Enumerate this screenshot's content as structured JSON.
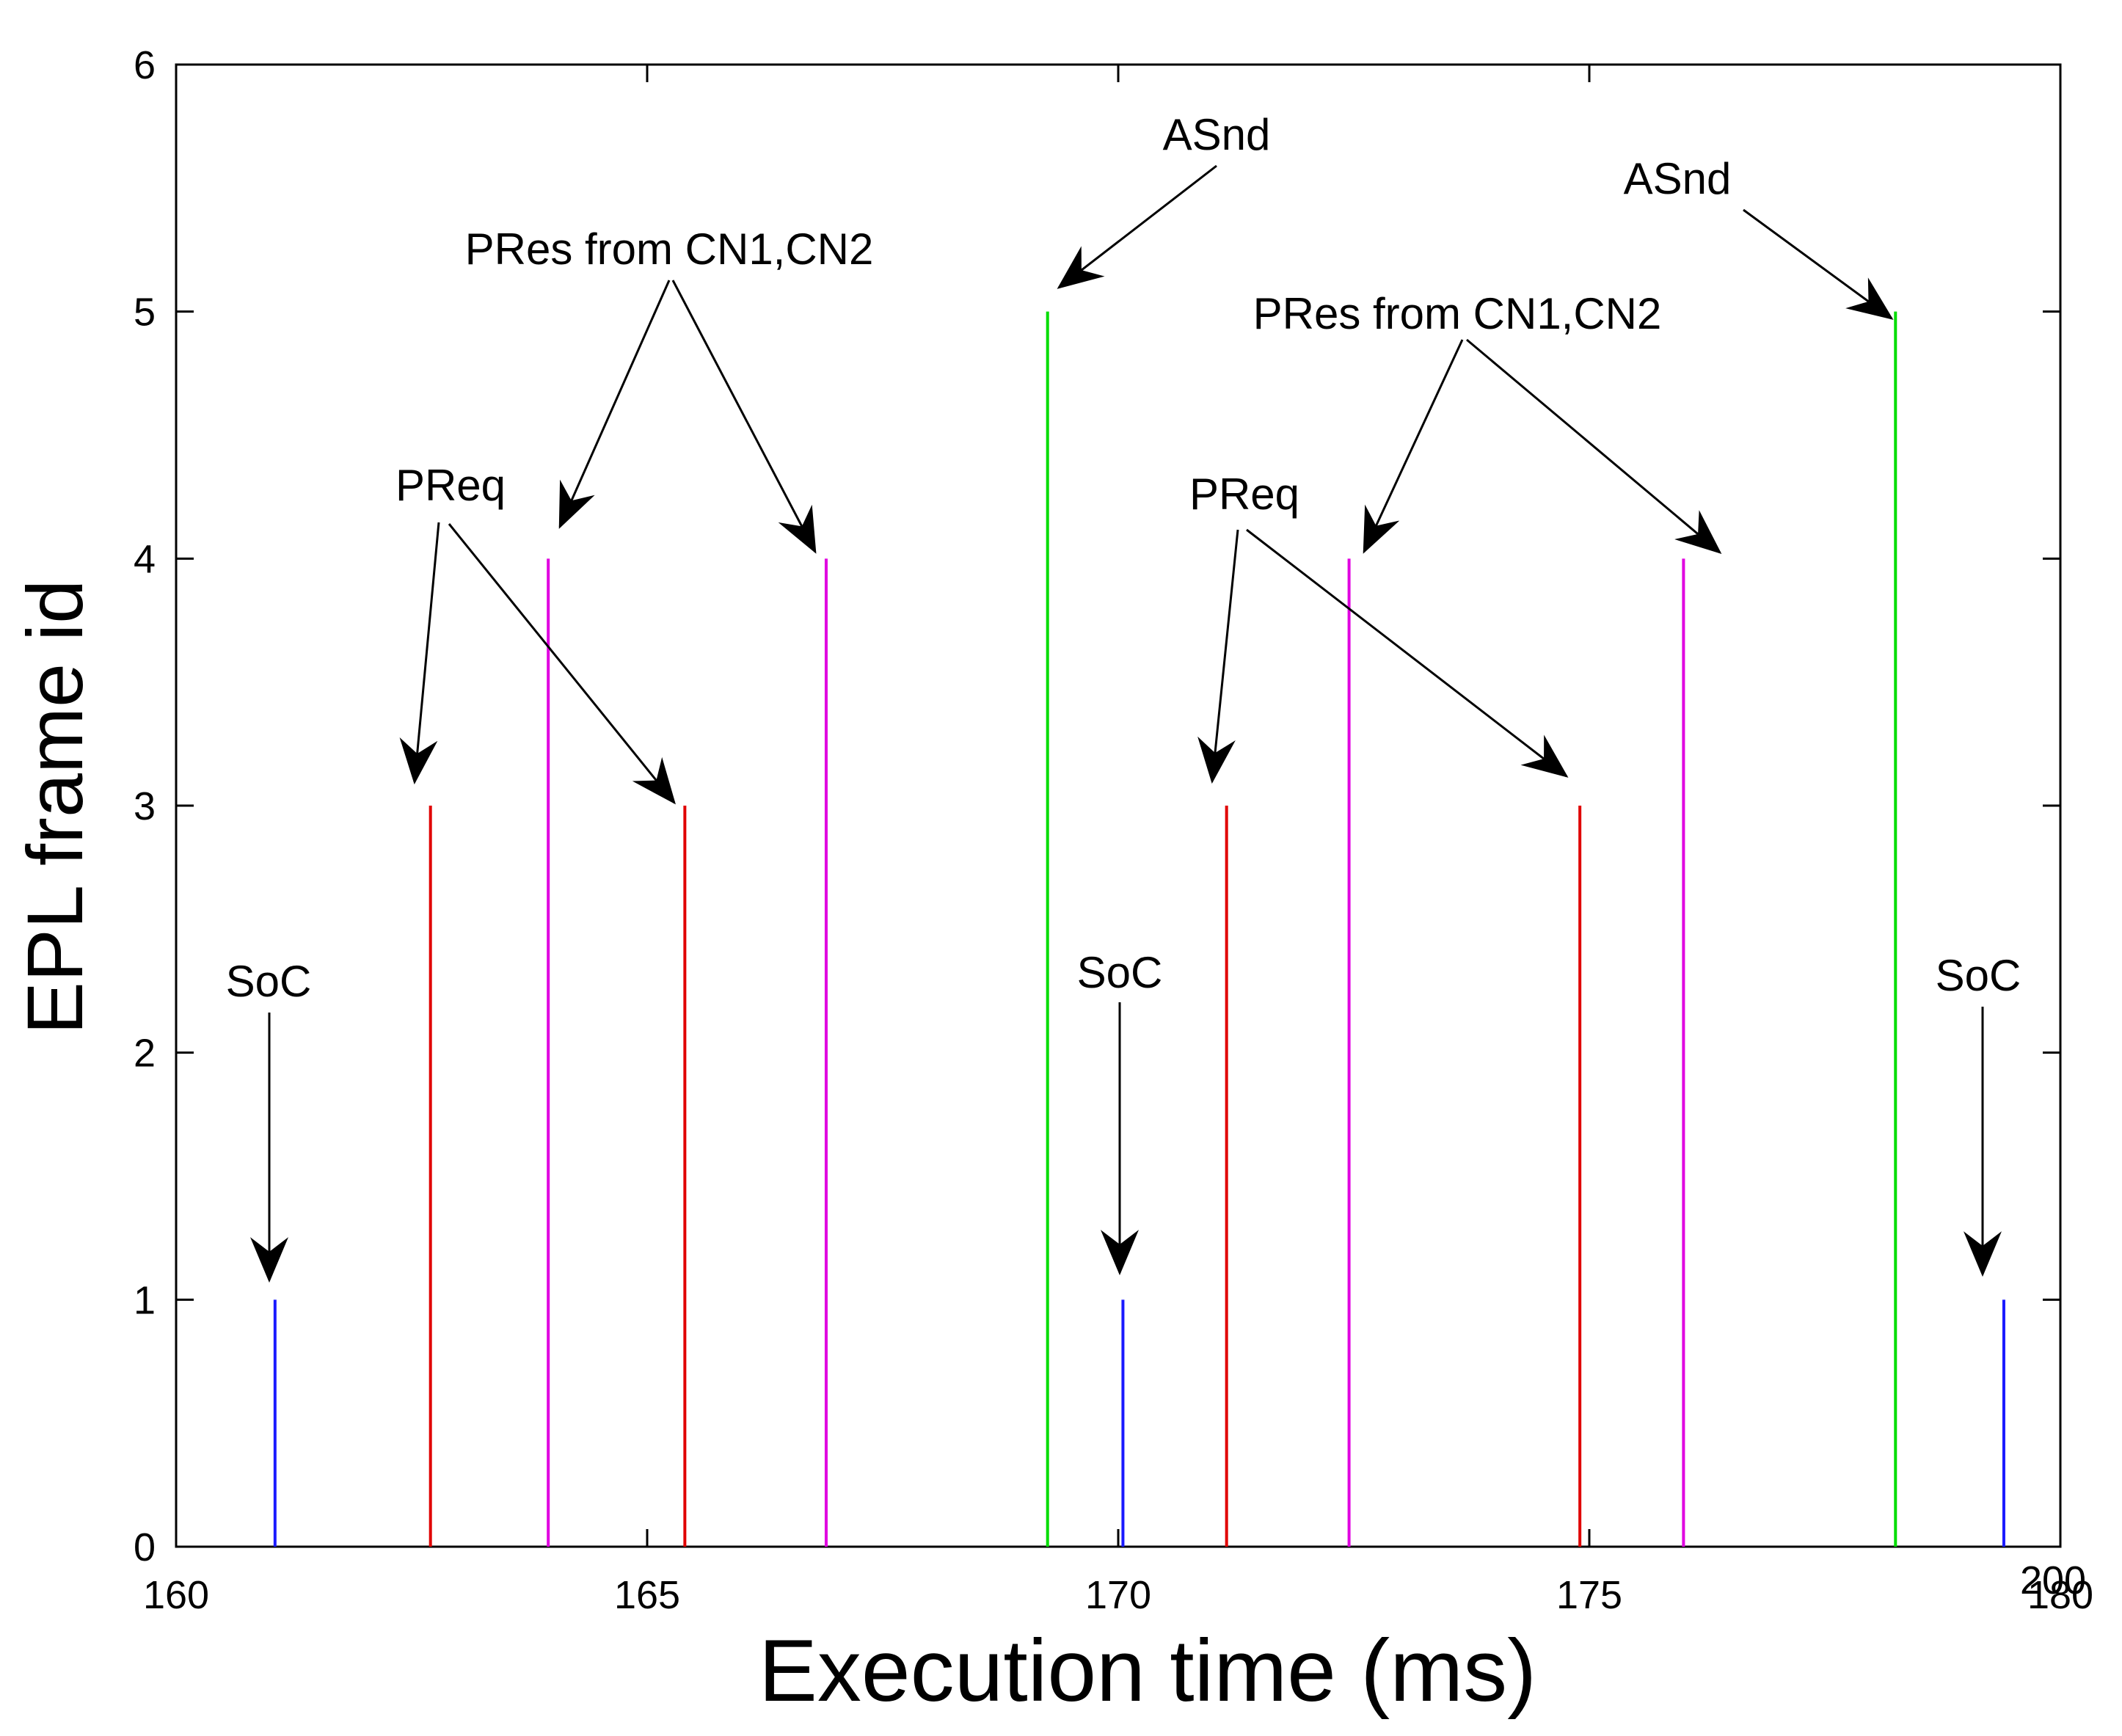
{
  "chart_data": {
    "type": "stem",
    "title": "",
    "xlabel": "Execution time (ms)",
    "ylabel": "EPL frame id",
    "xlim": [
      160,
      200
    ],
    "ylim": [
      0,
      6
    ],
    "x_ticks": [
      "160",
      "165",
      "170",
      "175",
      "180",
      "200"
    ],
    "y_ticks": [
      "0",
      "1",
      "2",
      "3",
      "4",
      "5",
      "6"
    ],
    "grid": false,
    "series": [
      {
        "name": "SoC",
        "color": "#1a1aff",
        "x": [
          162.1,
          180.1,
          198.8
        ],
        "y": [
          1,
          1,
          1
        ]
      },
      {
        "name": "PReq",
        "color": "#e00000",
        "x": [
          165.4,
          170.8,
          182.3,
          189.8
        ],
        "y": [
          3,
          3,
          3,
          3
        ]
      },
      {
        "name": "PRes from CN1,CN2",
        "color": "#e000e0",
        "x": [
          167.9,
          173.8,
          184.9,
          192.0
        ],
        "y": [
          4,
          4,
          4,
          4
        ]
      },
      {
        "name": "ASnd",
        "color": "#00dd00",
        "x": [
          178.5,
          196.5
        ],
        "y": [
          5,
          5
        ]
      }
    ],
    "annotations": [
      {
        "text": "SoC",
        "series": "SoC"
      },
      {
        "text": "PReq",
        "series": "PReq"
      },
      {
        "text": "PRes from CN1,CN2",
        "series": "PRes from CN1,CN2"
      },
      {
        "text": "ASnd",
        "series": "ASnd"
      },
      {
        "text": "SoC",
        "series": "SoC"
      },
      {
        "text": "PReq",
        "series": "PReq"
      },
      {
        "text": "PRes from CN1,CN2",
        "series": "PRes from CN1,CN2"
      },
      {
        "text": "ASnd",
        "series": "ASnd"
      },
      {
        "text": "SoC",
        "series": "SoC"
      }
    ]
  }
}
